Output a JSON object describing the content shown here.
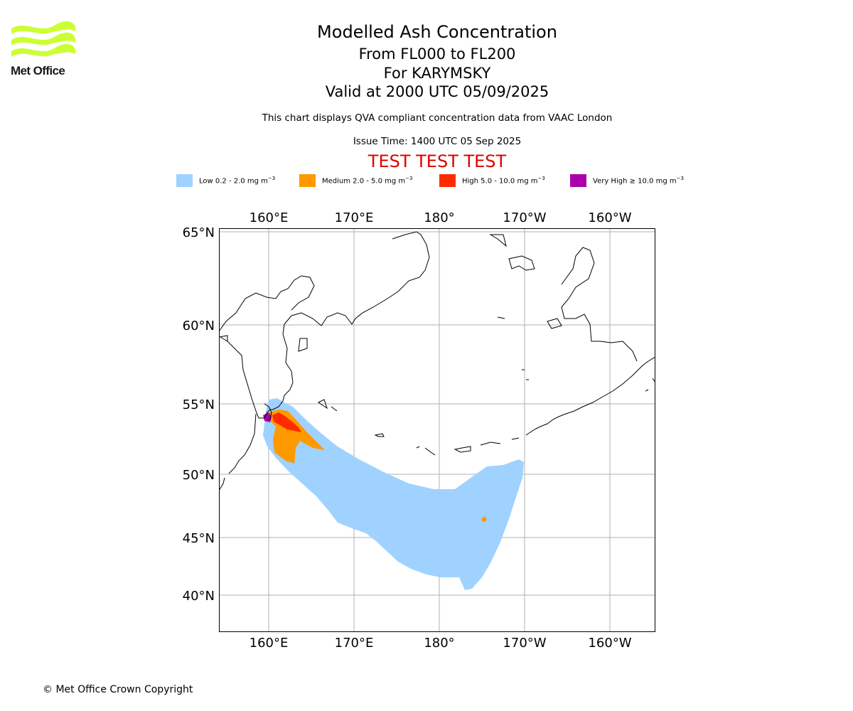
{
  "logo": {
    "text": "Met Office",
    "wave_color": "#ccff33"
  },
  "header": {
    "title": "Modelled Ash Concentration",
    "levels": "From FL000 to FL200",
    "volcano": "For KARYMSKY",
    "valid": "Valid at 2000 UTC 05/09/2025",
    "description": "This chart displays QVA compliant concentration data from VAAC London",
    "issue_time": "Issue Time: 1400 UTC 05 Sep 2025",
    "test_banner": "TEST TEST TEST"
  },
  "legend": [
    {
      "label": "Low 0.2 - 2.0 mg m",
      "unit_exp": "−3",
      "color": "#a0d2ff"
    },
    {
      "label": "Medium 2.0 - 5.0 mg m",
      "unit_exp": "−3",
      "color": "#ff9900"
    },
    {
      "label": "High 5.0 - 10.0 mg m",
      "unit_exp": "−3",
      "color": "#ff2a00"
    },
    {
      "label": "Very High ≥ 10.0 mg m",
      "unit_exp": "−3",
      "color": "#aa00aa"
    }
  ],
  "map": {
    "longitude_labels": [
      "160°E",
      "170°E",
      "180°",
      "170°W",
      "160°W"
    ],
    "latitude_labels": [
      "65°N",
      "60°N",
      "55°N",
      "50°N",
      "45°N",
      "40°N"
    ],
    "gridlines": true
  },
  "footer": {
    "copyright": "© Met Office Crown Copyright"
  }
}
